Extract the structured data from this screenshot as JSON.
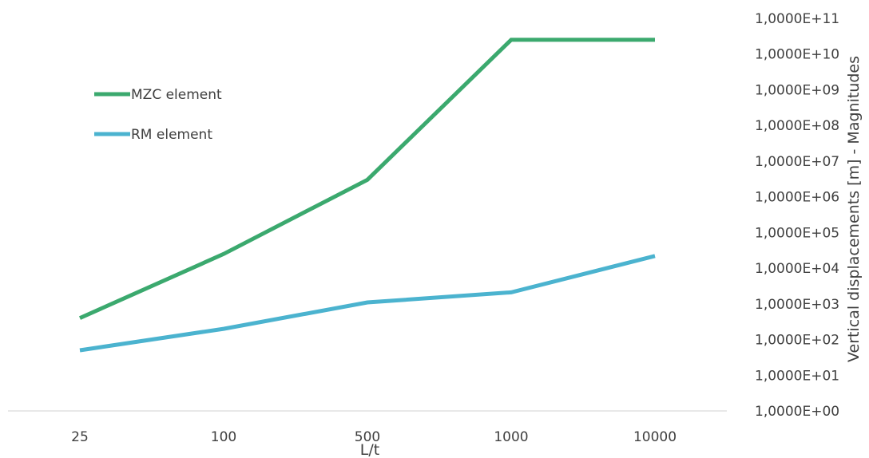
{
  "chart_data": {
    "type": "line",
    "xlabel": "L/t",
    "ylabel": "Vertical displacements [m] - Magnitudes",
    "categories": [
      "25",
      "100",
      "500",
      "1000",
      "10000"
    ],
    "y_scale": "log",
    "ylim": [
      1,
      100000000000
    ],
    "y_tick_labels": [
      "1,0000E+00",
      "1,0000E+01",
      "1,0000E+02",
      "1,0000E+03",
      "1,0000E+04",
      "1,0000E+05",
      "1,0000E+06",
      "1,0000E+07",
      "1,0000E+08",
      "1,0000E+09",
      "1,0000E+10",
      "1,0000E+11"
    ],
    "y_axis_side": "right",
    "grid": false,
    "legend_position": "top-left",
    "series": [
      {
        "name": "MZC element",
        "color": "#3BA96E",
        "values": [
          400,
          25000,
          3000000,
          25000000000,
          25000000000
        ]
      },
      {
        "name": "RM element",
        "color": "#4BB3CF",
        "values": [
          50,
          200,
          1100,
          2100,
          22000
        ]
      }
    ]
  }
}
